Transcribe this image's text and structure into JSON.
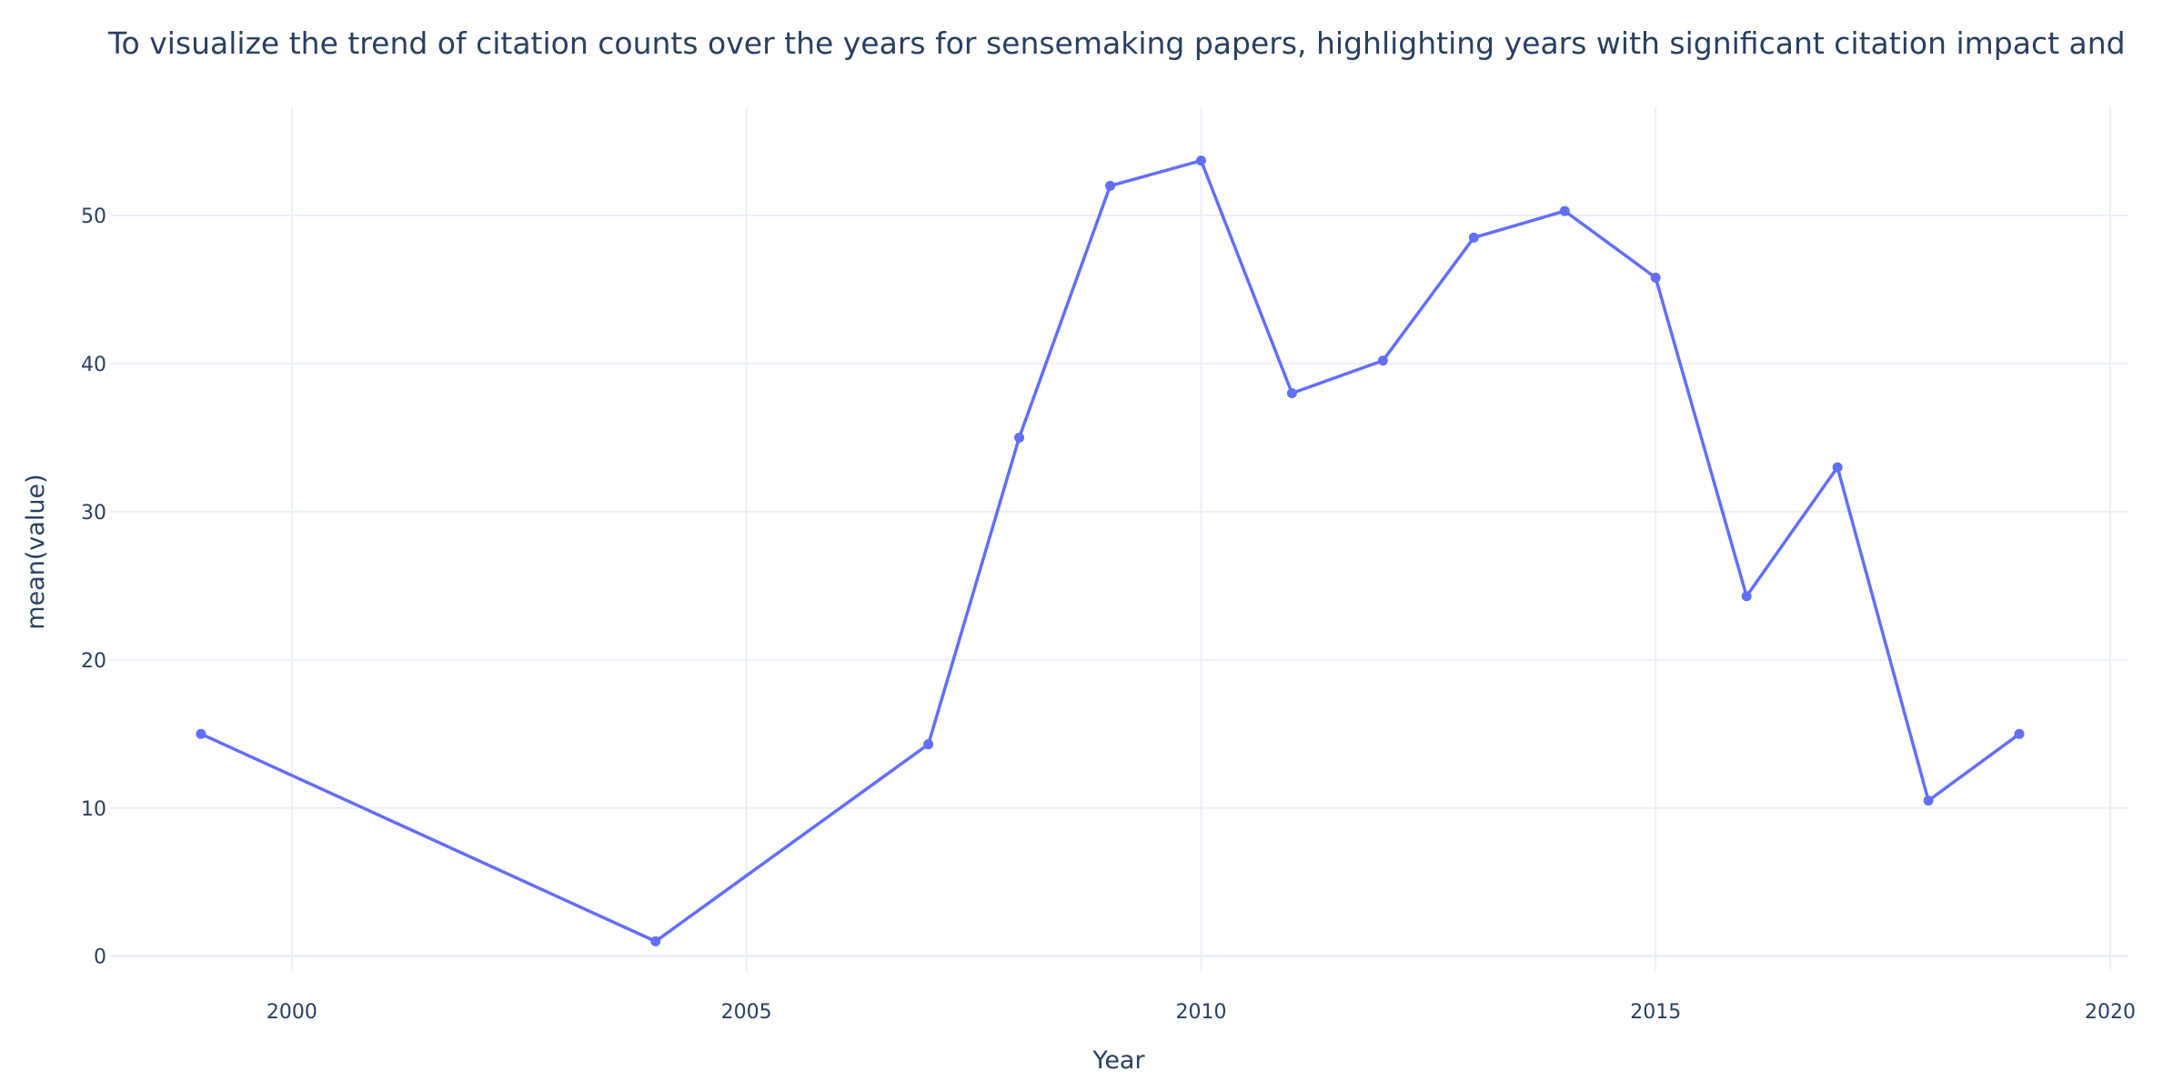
{
  "chart_data": {
    "type": "line",
    "title": "To visualize the trend of citation counts over the years for sensemaking papers, highlighting years with significant citation impact and",
    "xlabel": "Year",
    "ylabel": "mean(value)",
    "xlim": [
      1998,
      2020.2
    ],
    "ylim": [
      -1,
      57.3
    ],
    "xticks": [
      2000,
      2005,
      2010,
      2015,
      2020
    ],
    "yticks": [
      0,
      10,
      20,
      30,
      40,
      50
    ],
    "grid": true,
    "series": [
      {
        "x": [
          1999,
          2004,
          2007,
          2008,
          2009,
          2010,
          2011,
          2012,
          2013,
          2014,
          2015,
          2016,
          2017,
          2018,
          2019
        ],
        "y": [
          15,
          1,
          14.3,
          35,
          52,
          53.7,
          38,
          40.2,
          48.5,
          50.3,
          45.8,
          24.3,
          33,
          10.5,
          15
        ]
      }
    ],
    "colors": {
      "line": "#636efa",
      "grid": "#ebf0f8",
      "text": "#2a3f5f"
    }
  }
}
